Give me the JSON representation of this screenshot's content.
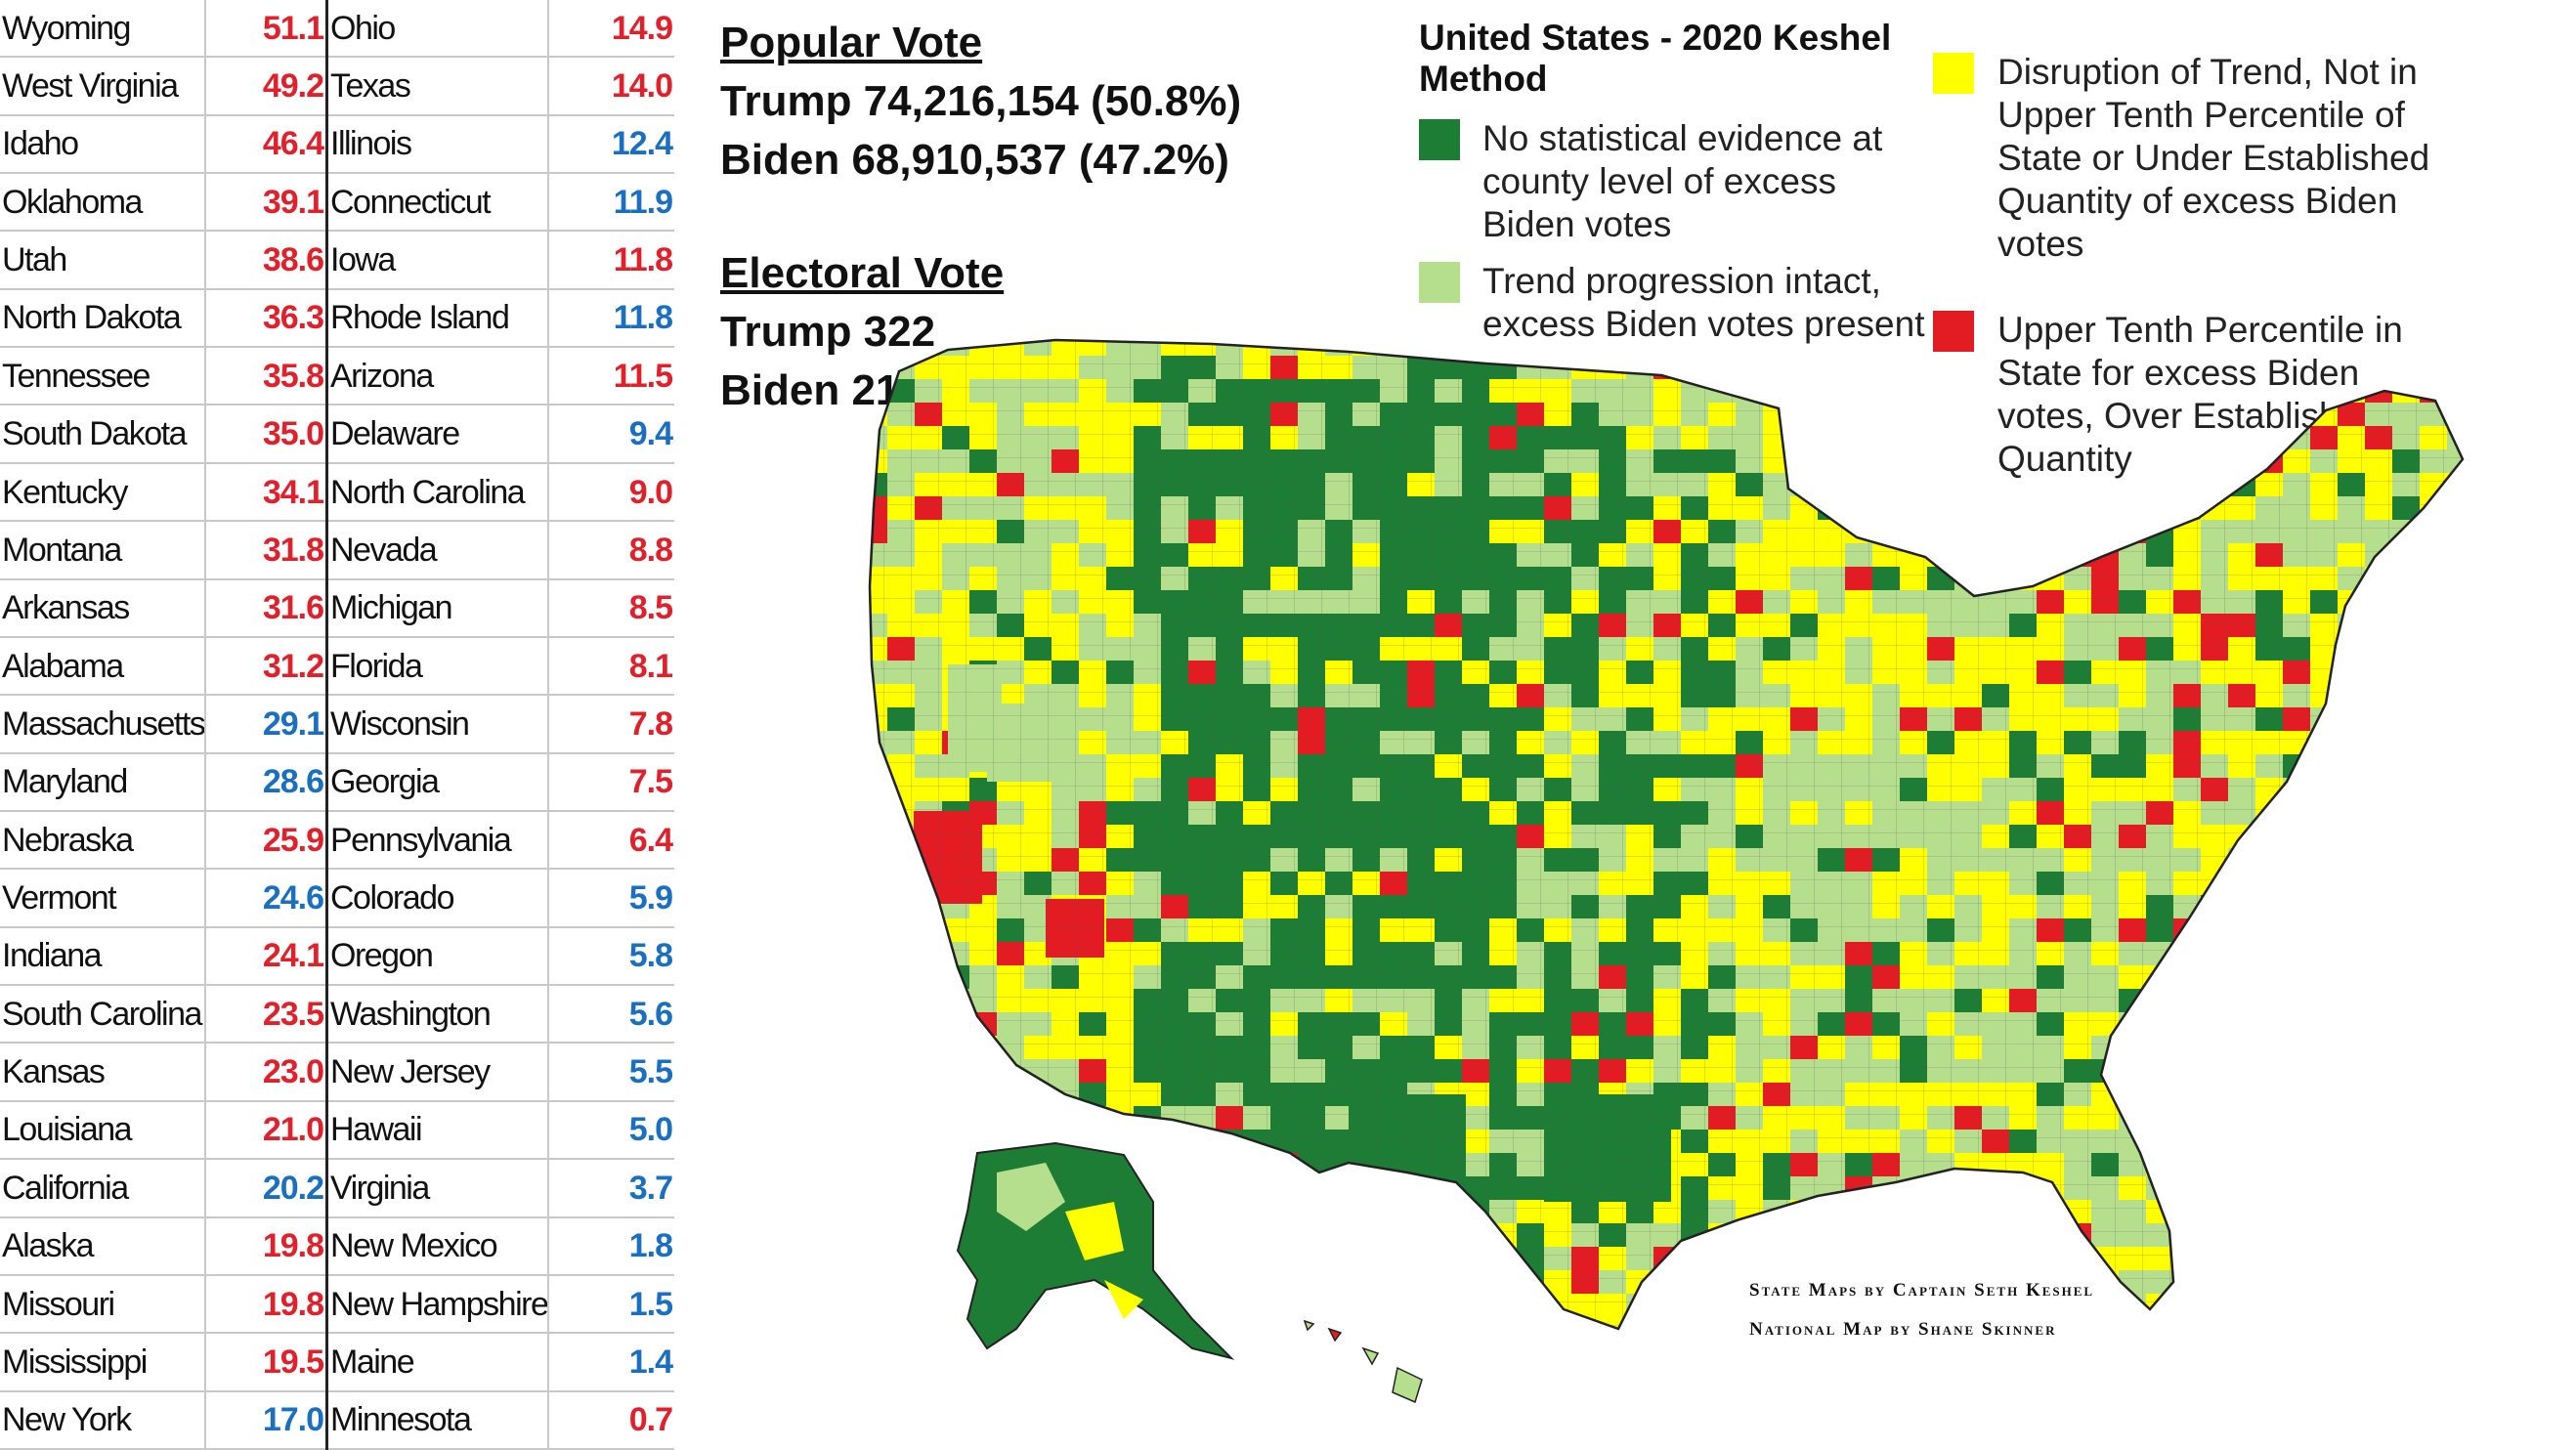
{
  "table": {
    "rows": [
      {
        "left": {
          "state": "Wyoming",
          "value": "51.1",
          "party": "R"
        },
        "right": {
          "state": "Ohio",
          "value": "14.9",
          "party": "R"
        }
      },
      {
        "left": {
          "state": "West Virginia",
          "value": "49.2",
          "party": "R"
        },
        "right": {
          "state": "Texas",
          "value": "14.0",
          "party": "R"
        }
      },
      {
        "left": {
          "state": "Idaho",
          "value": "46.4",
          "party": "R"
        },
        "right": {
          "state": "Illinois",
          "value": "12.4",
          "party": "D"
        }
      },
      {
        "left": {
          "state": "Oklahoma",
          "value": "39.1",
          "party": "R"
        },
        "right": {
          "state": "Connecticut",
          "value": "11.9",
          "party": "D"
        }
      },
      {
        "left": {
          "state": "Utah",
          "value": "38.6",
          "party": "R"
        },
        "right": {
          "state": "Iowa",
          "value": "11.8",
          "party": "R"
        }
      },
      {
        "left": {
          "state": "North Dakota",
          "value": "36.3",
          "party": "R"
        },
        "right": {
          "state": "Rhode Island",
          "value": "11.8",
          "party": "D"
        }
      },
      {
        "left": {
          "state": "Tennessee",
          "value": "35.8",
          "party": "R"
        },
        "right": {
          "state": "Arizona",
          "value": "11.5",
          "party": "R"
        }
      },
      {
        "left": {
          "state": "South Dakota",
          "value": "35.0",
          "party": "R"
        },
        "right": {
          "state": "Delaware",
          "value": "9.4",
          "party": "D"
        }
      },
      {
        "left": {
          "state": "Kentucky",
          "value": "34.1",
          "party": "R"
        },
        "right": {
          "state": "North Carolina",
          "value": "9.0",
          "party": "R"
        }
      },
      {
        "left": {
          "state": "Montana",
          "value": "31.8",
          "party": "R"
        },
        "right": {
          "state": "Nevada",
          "value": "8.8",
          "party": "R"
        }
      },
      {
        "left": {
          "state": "Arkansas",
          "value": "31.6",
          "party": "R"
        },
        "right": {
          "state": "Michigan",
          "value": "8.5",
          "party": "R"
        }
      },
      {
        "left": {
          "state": "Alabama",
          "value": "31.2",
          "party": "R"
        },
        "right": {
          "state": "Florida",
          "value": "8.1",
          "party": "R"
        }
      },
      {
        "left": {
          "state": "Massachusetts",
          "value": "29.1",
          "party": "D"
        },
        "right": {
          "state": "Wisconsin",
          "value": "7.8",
          "party": "R"
        }
      },
      {
        "left": {
          "state": "Maryland",
          "value": "28.6",
          "party": "D"
        },
        "right": {
          "state": "Georgia",
          "value": "7.5",
          "party": "R"
        }
      },
      {
        "left": {
          "state": "Nebraska",
          "value": "25.9",
          "party": "R"
        },
        "right": {
          "state": "Pennsylvania",
          "value": "6.4",
          "party": "R"
        }
      },
      {
        "left": {
          "state": "Vermont",
          "value": "24.6",
          "party": "D"
        },
        "right": {
          "state": "Colorado",
          "value": "5.9",
          "party": "D"
        }
      },
      {
        "left": {
          "state": "Indiana",
          "value": "24.1",
          "party": "R"
        },
        "right": {
          "state": "Oregon",
          "value": "5.8",
          "party": "D"
        }
      },
      {
        "left": {
          "state": "South Carolina",
          "value": "23.5",
          "party": "R"
        },
        "right": {
          "state": "Washington",
          "value": "5.6",
          "party": "D"
        }
      },
      {
        "left": {
          "state": "Kansas",
          "value": "23.0",
          "party": "R"
        },
        "right": {
          "state": "New Jersey",
          "value": "5.5",
          "party": "D"
        }
      },
      {
        "left": {
          "state": "Louisiana",
          "value": "21.0",
          "party": "R"
        },
        "right": {
          "state": "Hawaii",
          "value": "5.0",
          "party": "D"
        }
      },
      {
        "left": {
          "state": "California",
          "value": "20.2",
          "party": "D"
        },
        "right": {
          "state": "Virginia",
          "value": "3.7",
          "party": "D"
        }
      },
      {
        "left": {
          "state": "Alaska",
          "value": "19.8",
          "party": "R"
        },
        "right": {
          "state": "New Mexico",
          "value": "1.8",
          "party": "D"
        }
      },
      {
        "left": {
          "state": "Missouri",
          "value": "19.8",
          "party": "R"
        },
        "right": {
          "state": "New Hampshire",
          "value": "1.5",
          "party": "D"
        }
      },
      {
        "left": {
          "state": "Mississippi",
          "value": "19.5",
          "party": "R"
        },
        "right": {
          "state": "Maine",
          "value": "1.4",
          "party": "D"
        }
      },
      {
        "left": {
          "state": "New York",
          "value": "17.0",
          "party": "D"
        },
        "right": {
          "state": "Minnesota",
          "value": "0.7",
          "party": "R"
        }
      }
    ]
  },
  "popular_vote": {
    "header": "Popular Vote",
    "trump": "Trump 74,216,154 (50.8%)",
    "biden": "Biden 68,910,537 (47.2%)"
  },
  "electoral_vote": {
    "header": "Electoral Vote",
    "trump": "Trump 322",
    "biden": "Biden 216"
  },
  "legend": {
    "title": "United States - 2020 Keshel Method",
    "items": [
      {
        "label": "No statistical evidence at county level of excess Biden votes",
        "color": "#1e7d34"
      },
      {
        "label": "Trend progression intact, excess Biden votes present",
        "color": "#b5df8c"
      },
      {
        "label": "Disruption of Trend, Not in Upper Tenth Percentile of State or Under Established Quantity of excess Biden votes",
        "color": "#ffff00"
      },
      {
        "label": "Upper Tenth Percentile in State for excess Biden votes, Over Established Quantity",
        "color": "#e31b23"
      }
    ]
  },
  "credits": {
    "line1": "State Maps by Captain Seth Keshel",
    "line2": "National Map by Shane Skinner"
  },
  "colors": {
    "republican": "#e0202a",
    "democrat": "#1a6fc0",
    "green": "#1e7d34",
    "light_green": "#b5df8c",
    "yellow": "#ffff00",
    "red": "#e31b23"
  }
}
